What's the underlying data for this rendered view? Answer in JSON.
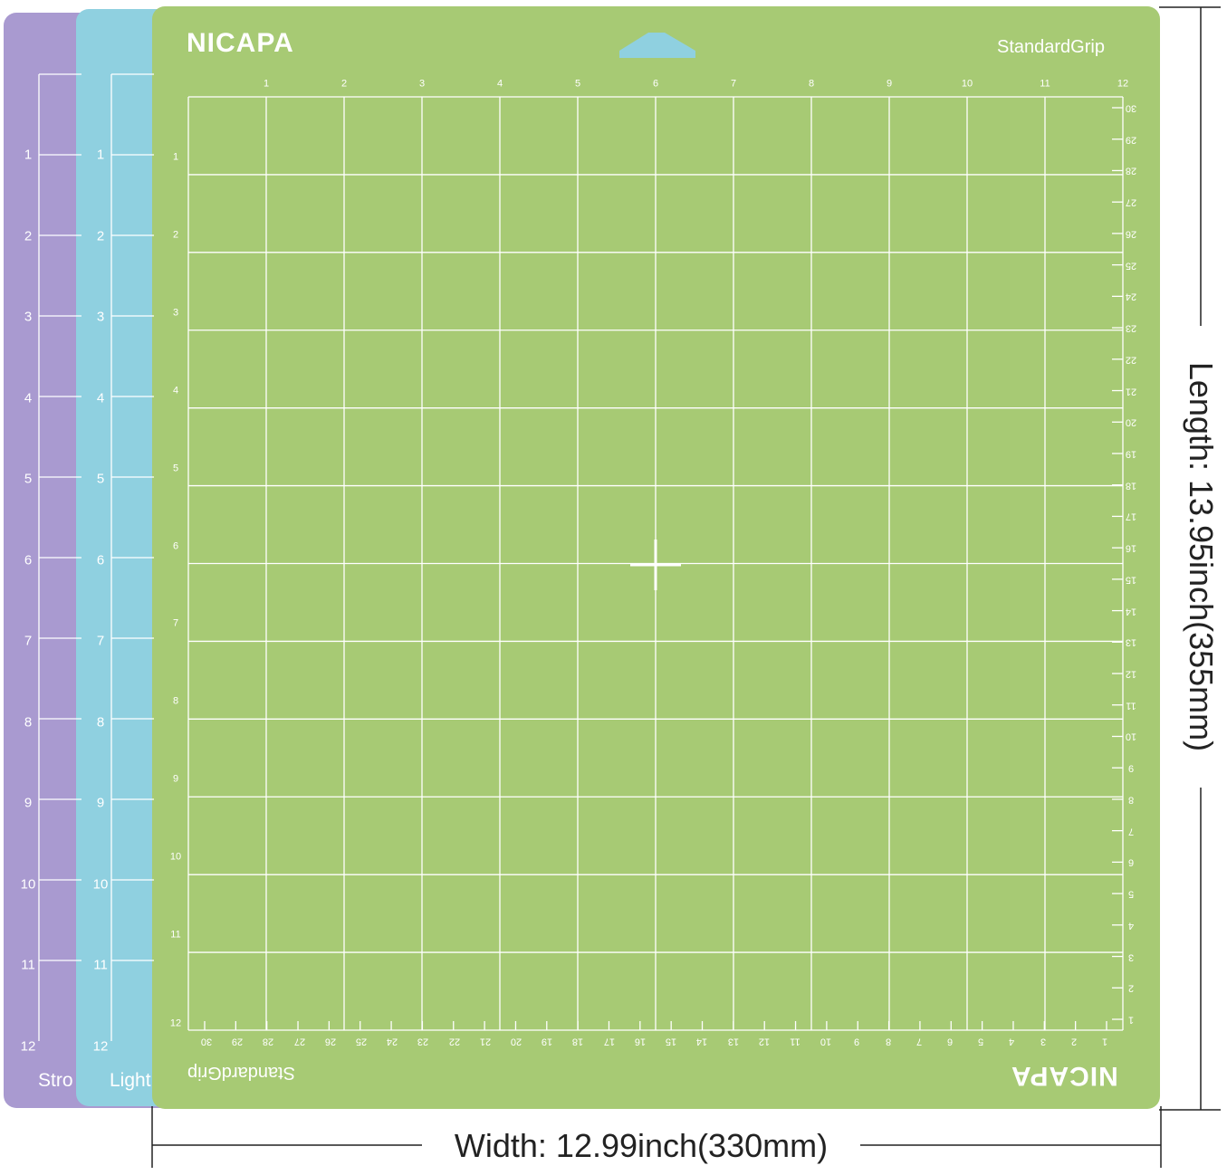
{
  "colors": {
    "purple_mat": "#a99ad0",
    "blue_mat": "#8fd0e0",
    "green_mat": "#a7ca74",
    "grid_line": "#ffffff",
    "dimension_line": "#222222"
  },
  "green_mat": {
    "brand": "NICAPA",
    "grip_label": "StandardGrip",
    "top_inch_labels": [
      "1",
      "2",
      "3",
      "4",
      "5",
      "6",
      "7",
      "8",
      "9",
      "10",
      "11",
      "12"
    ],
    "left_inch_labels": [
      "1",
      "2",
      "3",
      "4",
      "5",
      "6",
      "7",
      "8",
      "9",
      "10",
      "11",
      "12"
    ],
    "bottom_cm_labels": [
      "30",
      "29",
      "28",
      "27",
      "26",
      "25",
      "24",
      "23",
      "22",
      "21",
      "20",
      "19",
      "18",
      "17",
      "16",
      "15",
      "14",
      "13",
      "12",
      "11",
      "10",
      "9",
      "8",
      "7",
      "6",
      "5",
      "4",
      "3",
      "2",
      "1"
    ],
    "right_cm_labels": [
      "30",
      "29",
      "28",
      "27",
      "26",
      "25",
      "24",
      "23",
      "22",
      "21",
      "20",
      "19",
      "18",
      "17",
      "16",
      "15",
      "14",
      "13",
      "12",
      "11",
      "10",
      "9",
      "8",
      "7",
      "6",
      "5",
      "4",
      "3",
      "2",
      "1"
    ],
    "center_mark_icon": "crosshair-icon",
    "hanger_icon": "hang-hole-icon"
  },
  "blue_mat": {
    "side_labels": [
      "1",
      "2",
      "3",
      "4",
      "5",
      "6",
      "7",
      "8",
      "9",
      "10",
      "11",
      "12"
    ],
    "grip_label_partial": "Light"
  },
  "purple_mat": {
    "side_labels": [
      "1",
      "2",
      "3",
      "4",
      "5",
      "6",
      "7",
      "8",
      "9",
      "10",
      "11",
      "12"
    ],
    "grip_label_partial": "Stro"
  },
  "dimensions": {
    "width": "Width: 12.99inch(330mm)",
    "length": "Length: 13.95inch(355mm)"
  }
}
